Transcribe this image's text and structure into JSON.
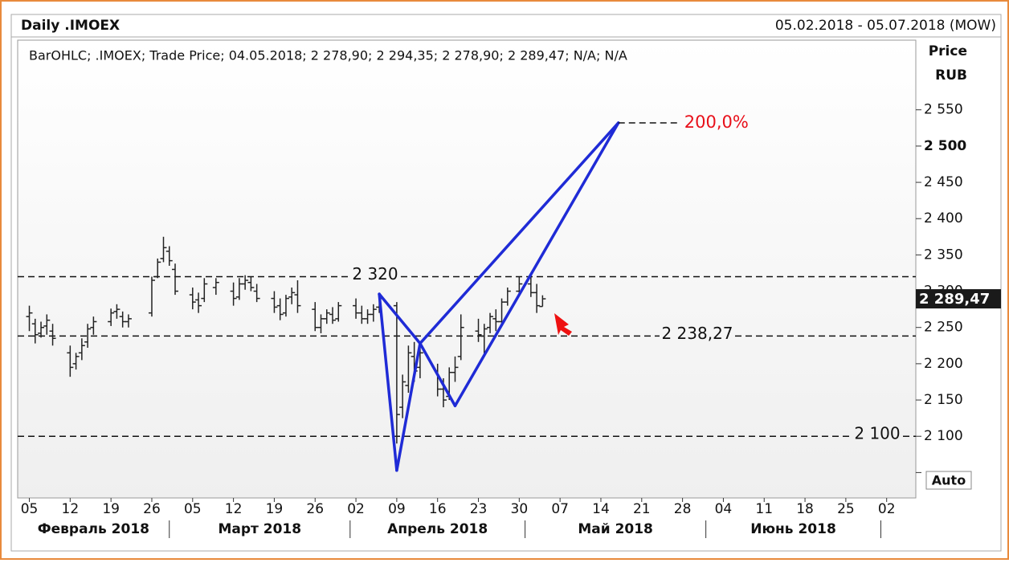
{
  "chart_data": {
    "type": "ohlc",
    "title": "Daily .IMOEX",
    "date_range": "05.02.2018 - 05.07.2018 (MOW)",
    "legend_text": "BarOHLC; .IMOEX; Trade Price; 04.05.2018; 2 278,90; 2 294,35; 2 278,90; 2 289,47; N/A; N/A",
    "y_label": "Price",
    "y_unit": "RUB",
    "auto_button": "Auto",
    "color": "#222222",
    "pattern_color": "#1f2bd6",
    "level_color": "#111111",
    "fib_color": "#e8101a",
    "ylim": [
      2015,
      2646
    ],
    "yticks": [
      {
        "value": 2050,
        "label": ""
      },
      {
        "value": 2100,
        "label": "2 100"
      },
      {
        "value": 2150,
        "label": "2 150"
      },
      {
        "value": 2200,
        "label": "2 200"
      },
      {
        "value": 2250,
        "label": "2 250"
      },
      {
        "value": 2300,
        "label": "2 300"
      },
      {
        "value": 2350,
        "label": "2 350"
      },
      {
        "value": 2400,
        "label": "2 400"
      },
      {
        "value": 2450,
        "label": "2 450"
      },
      {
        "value": 2500,
        "label": "2 500"
      },
      {
        "value": 2550,
        "label": "2 550"
      }
    ],
    "xlim": [
      "2018-02-03",
      "2018-07-07"
    ],
    "xticks": [
      {
        "value": "2018-02-05",
        "label": "05"
      },
      {
        "value": "2018-02-12",
        "label": "12"
      },
      {
        "value": "2018-02-19",
        "label": "19"
      },
      {
        "value": "2018-02-26",
        "label": "26"
      },
      {
        "value": "2018-03-05",
        "label": "05"
      },
      {
        "value": "2018-03-12",
        "label": "12"
      },
      {
        "value": "2018-03-19",
        "label": "19"
      },
      {
        "value": "2018-03-26",
        "label": "26"
      },
      {
        "value": "2018-04-02",
        "label": "02"
      },
      {
        "value": "2018-04-09",
        "label": "09"
      },
      {
        "value": "2018-04-16",
        "label": "16"
      },
      {
        "value": "2018-04-23",
        "label": "23"
      },
      {
        "value": "2018-04-30",
        "label": "30"
      },
      {
        "value": "2018-05-07",
        "label": "07"
      },
      {
        "value": "2018-05-14",
        "label": "14"
      },
      {
        "value": "2018-05-21",
        "label": "21"
      },
      {
        "value": "2018-05-28",
        "label": "28"
      },
      {
        "value": "2018-06-04",
        "label": "04"
      },
      {
        "value": "2018-06-11",
        "label": "11"
      },
      {
        "value": "2018-06-18",
        "label": "18"
      },
      {
        "value": "2018-06-25",
        "label": "25"
      },
      {
        "value": "2018-07-02",
        "label": "02"
      }
    ],
    "months": [
      {
        "value": "2018-02-01",
        "end": "2018-03-01",
        "label": "Февраль 2018"
      },
      {
        "value": "2018-03-01",
        "end": "2018-04-01",
        "label": "Март 2018"
      },
      {
        "value": "2018-04-01",
        "end": "2018-05-01",
        "label": "Апрель 2018"
      },
      {
        "value": "2018-05-01",
        "end": "2018-06-01",
        "label": "Май 2018"
      },
      {
        "value": "2018-06-01",
        "end": "2018-07-01",
        "label": "Июнь 2018"
      }
    ],
    "x": [
      "2018-02-05",
      "2018-02-06",
      "2018-02-07",
      "2018-02-08",
      "2018-02-09",
      "2018-02-12",
      "2018-02-13",
      "2018-02-14",
      "2018-02-15",
      "2018-02-16",
      "2018-02-19",
      "2018-02-20",
      "2018-02-21",
      "2018-02-22",
      "2018-02-26",
      "2018-02-27",
      "2018-02-28",
      "2018-03-01",
      "2018-03-02",
      "2018-03-05",
      "2018-03-06",
      "2018-03-07",
      "2018-03-09",
      "2018-03-12",
      "2018-03-13",
      "2018-03-14",
      "2018-03-15",
      "2018-03-16",
      "2018-03-19",
      "2018-03-20",
      "2018-03-21",
      "2018-03-22",
      "2018-03-23",
      "2018-03-26",
      "2018-03-27",
      "2018-03-28",
      "2018-03-29",
      "2018-03-30",
      "2018-04-02",
      "2018-04-03",
      "2018-04-04",
      "2018-04-05",
      "2018-04-06",
      "2018-04-09",
      "2018-04-10",
      "2018-04-11",
      "2018-04-12",
      "2018-04-13",
      "2018-04-16",
      "2018-04-17",
      "2018-04-18",
      "2018-04-19",
      "2018-04-20",
      "2018-04-23",
      "2018-04-24",
      "2018-04-25",
      "2018-04-26",
      "2018-04-27",
      "2018-04-28",
      "2018-04-30",
      "2018-05-02",
      "2018-05-03",
      "2018-05-04"
    ],
    "open": [
      2265,
      2255,
      2242,
      2252,
      2245,
      2215,
      2200,
      2215,
      2230,
      2250,
      2258,
      2272,
      2265,
      2258,
      2270,
      2320,
      2345,
      2355,
      2330,
      2295,
      2288,
      2290,
      2305,
      2300,
      2292,
      2310,
      2312,
      2300,
      2290,
      2280,
      2270,
      2292,
      2295,
      2275,
      2250,
      2262,
      2268,
      2262,
      2280,
      2270,
      2262,
      2268,
      2278,
      2280,
      2140,
      2170,
      2210,
      2195,
      2190,
      2165,
      2155,
      2188,
      2210,
      2245,
      2238,
      2250,
      2262,
      2258,
      2285,
      2300,
      2310,
      2298,
      2278.9
    ],
    "high": [
      2280,
      2262,
      2258,
      2268,
      2255,
      2225,
      2215,
      2235,
      2255,
      2265,
      2276,
      2282,
      2272,
      2268,
      2320,
      2345,
      2375,
      2362,
      2338,
      2305,
      2298,
      2318,
      2318,
      2312,
      2318,
      2322,
      2320,
      2310,
      2300,
      2290,
      2295,
      2305,
      2315,
      2285,
      2268,
      2275,
      2278,
      2285,
      2290,
      2280,
      2275,
      2282,
      2295,
      2285,
      2185,
      2225,
      2230,
      2225,
      2200,
      2180,
      2195,
      2210,
      2268,
      2262,
      2255,
      2270,
      2275,
      2290,
      2305,
      2320,
      2322,
      2310,
      2294.35
    ],
    "low": [
      2245,
      2228,
      2236,
      2240,
      2225,
      2182,
      2192,
      2205,
      2222,
      2240,
      2252,
      2262,
      2250,
      2250,
      2265,
      2318,
      2340,
      2335,
      2295,
      2275,
      2270,
      2285,
      2295,
      2280,
      2288,
      2302,
      2300,
      2285,
      2270,
      2260,
      2265,
      2282,
      2270,
      2245,
      2242,
      2255,
      2255,
      2258,
      2262,
      2255,
      2255,
      2258,
      2270,
      2090,
      2125,
      2160,
      2175,
      2180,
      2155,
      2140,
      2150,
      2175,
      2205,
      2230,
      2210,
      2242,
      2245,
      2255,
      2280,
      2295,
      2292,
      2270,
      2278.9
    ],
    "close": [
      2270,
      2240,
      2250,
      2260,
      2235,
      2195,
      2210,
      2225,
      2248,
      2258,
      2270,
      2275,
      2258,
      2262,
      2315,
      2340,
      2360,
      2342,
      2300,
      2285,
      2280,
      2310,
      2312,
      2290,
      2310,
      2315,
      2305,
      2290,
      2278,
      2268,
      2290,
      2298,
      2280,
      2250,
      2262,
      2270,
      2260,
      2280,
      2270,
      2262,
      2268,
      2275,
      2290,
      2130,
      2175,
      2215,
      2190,
      2215,
      2165,
      2150,
      2188,
      2195,
      2250,
      2240,
      2248,
      2265,
      2258,
      2285,
      2300,
      2310,
      2298,
      2280,
      2289.47
    ],
    "last_label": "2 289,47",
    "levels": [
      {
        "value": 2320,
        "label": "2 320"
      },
      {
        "value": 2238.27,
        "label": "2 238,27"
      },
      {
        "value": 2100,
        "label": "2 100"
      }
    ],
    "pattern": {
      "x": [
        "2018-04-06",
        "2018-04-09",
        "2018-04-13",
        "2018-04-19",
        "2018-05-17"
      ],
      "values": [
        2296,
        2053,
        2228,
        2142,
        2532
      ]
    },
    "fib": {
      "x": "2018-05-17",
      "value": 2532,
      "label": "200,0%"
    }
  }
}
